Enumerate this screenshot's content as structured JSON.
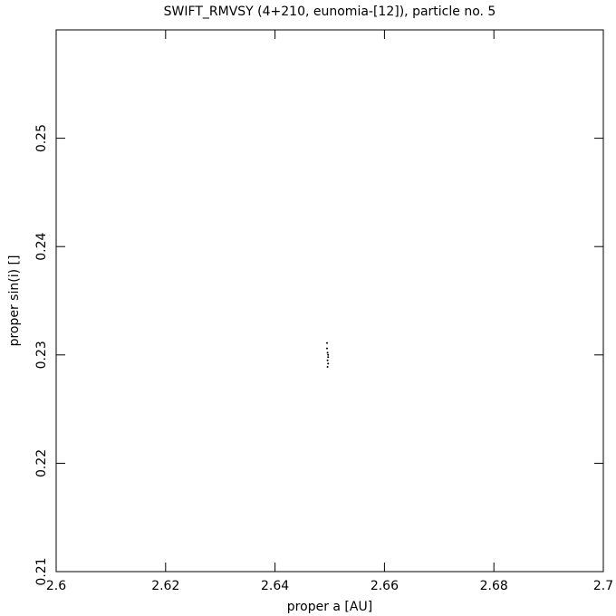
{
  "chart_data": {
    "type": "scatter",
    "title": "SWIFT_RMVSY (4+210, eunomia-[12]), particle no. 5",
    "x_label": "proper a [AU]",
    "y_label": "proper sin(i) []",
    "color": "#000000",
    "x": [
      2.6495,
      2.6495,
      2.6496,
      2.6497,
      2.6496,
      2.6497,
      2.6496,
      2.6497
    ],
    "values": [
      0.2311,
      0.2306,
      0.2302,
      0.2298,
      0.2295,
      0.2292,
      0.2289,
      0.23
    ],
    "xlim": [
      2.6,
      2.7
    ],
    "xticks": [
      2.6,
      2.62,
      2.64,
      2.66,
      2.68,
      2.7
    ],
    "ylim": [
      0.21,
      0.26
    ],
    "yticks": [
      0.21,
      0.22,
      0.23,
      0.24,
      0.25
    ]
  }
}
